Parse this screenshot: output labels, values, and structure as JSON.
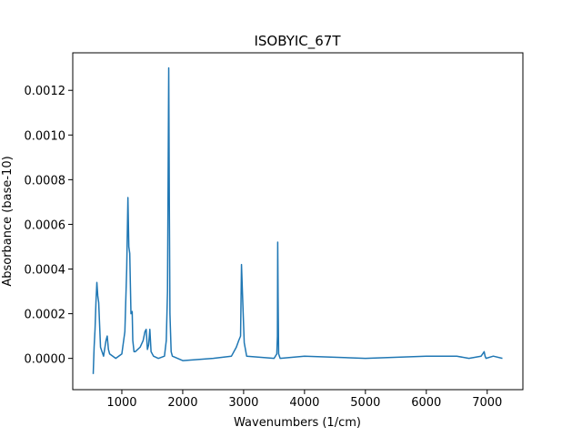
{
  "chart_data": {
    "type": "line",
    "title": "ISOBYIC_67T",
    "xlabel": "Wavenumbers (1/cm)",
    "ylabel": "Absorbance (base-10)",
    "x": [
      530,
      545,
      560,
      575,
      590,
      605,
      620,
      650,
      700,
      740,
      760,
      780,
      800,
      900,
      1000,
      1050,
      1080,
      1100,
      1115,
      1130,
      1150,
      1170,
      1180,
      1200,
      1220,
      1300,
      1350,
      1380,
      1400,
      1420,
      1440,
      1460,
      1480,
      1520,
      1600,
      1700,
      1730,
      1750,
      1760,
      1770,
      1780,
      1790,
      1810,
      1830,
      2000,
      2500,
      2800,
      2880,
      2920,
      2950,
      2965,
      2980,
      3010,
      3050,
      3500,
      3545,
      3555,
      3560,
      3566,
      3575,
      3600,
      4000,
      5000,
      6000,
      6500,
      6700,
      6900,
      6950,
      6965,
      6980,
      7100,
      7250
    ],
    "values": [
      -7e-05,
      5e-05,
      0.00013,
      0.00025,
      0.00034,
      0.00028,
      0.00025,
      5e-05,
      1e-05,
      8e-05,
      0.0001,
      4e-05,
      2e-05,
      0.0,
      2e-05,
      0.00012,
      0.0004,
      0.00072,
      0.0005,
      0.00047,
      0.0002,
      0.00021,
      8e-05,
      3e-05,
      3e-05,
      5e-05,
      8e-05,
      0.00012,
      0.00013,
      4e-05,
      6e-05,
      0.00013,
      3e-05,
      1e-05,
      0.0,
      1e-05,
      8e-05,
      0.0003,
      0.0008,
      0.0013,
      0.0007,
      0.0002,
      3e-05,
      1e-05,
      -1e-05,
      0.0,
      1e-05,
      5e-05,
      8e-05,
      0.0001,
      0.00042,
      0.0003,
      7e-05,
      1e-05,
      0.0,
      2e-05,
      0.0001,
      0.00052,
      0.00028,
      2e-05,
      0.0,
      1e-05,
      0.0,
      1e-05,
      1e-05,
      0.0,
      1e-05,
      3e-05,
      1e-05,
      0.0,
      1e-05,
      0.0
    ],
    "color": "#1f77b4",
    "xlim": [
      194,
      7586
    ],
    "ylim": [
      -0.00014,
      0.001368
    ],
    "xticks": [
      1000,
      2000,
      3000,
      4000,
      5000,
      6000,
      7000
    ],
    "yticks": [
      {
        "value": 0,
        "label": "0.0000"
      },
      {
        "value": 0.0002,
        "label": "0.0002"
      },
      {
        "value": 0.0004,
        "label": "0.0004"
      },
      {
        "value": 0.0006,
        "label": "0.0006"
      },
      {
        "value": 0.0008,
        "label": "0.0008"
      },
      {
        "value": 0.001,
        "label": "0.0010"
      },
      {
        "value": 0.0012,
        "label": "0.0012"
      }
    ]
  }
}
